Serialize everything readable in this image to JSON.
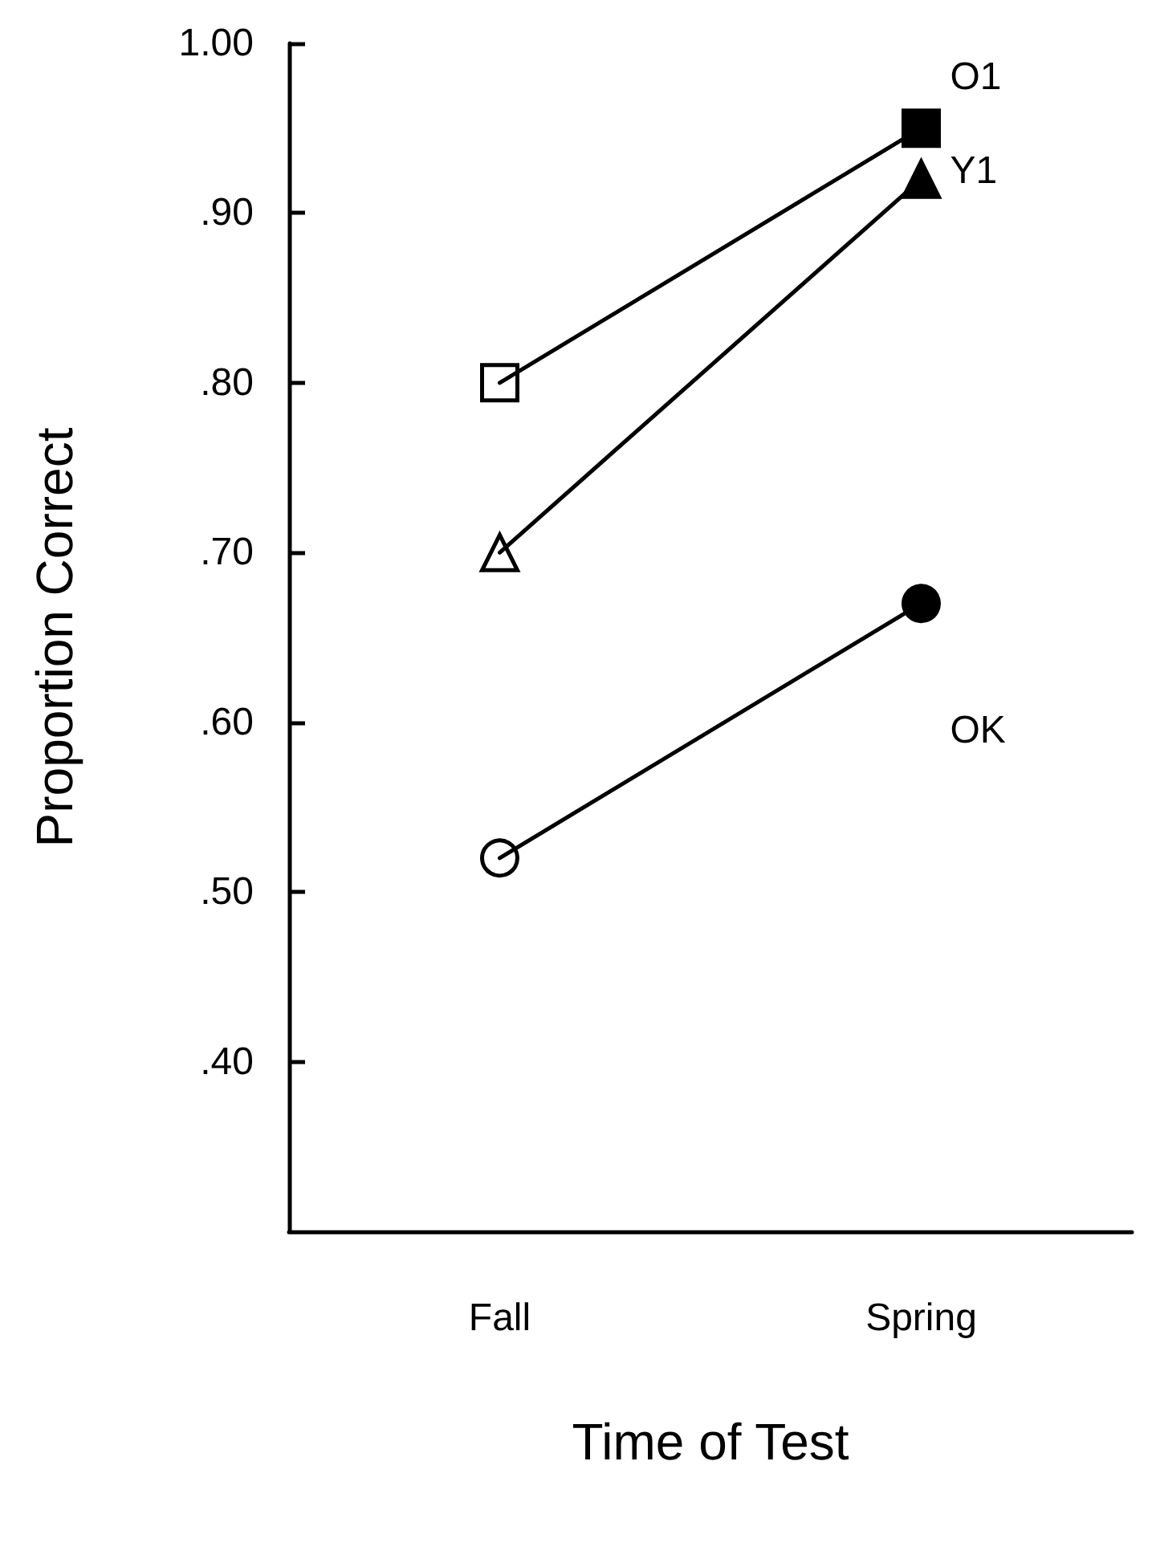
{
  "chart_data": {
    "type": "line",
    "xlabel": "Time of Test",
    "ylabel": "Proportion Correct",
    "categories": [
      "Fall",
      "Spring"
    ],
    "series": [
      {
        "name": "O1",
        "color": "#000000",
        "marker": "square",
        "colors": [
          null,
          "#000000"
        ],
        "values": [
          0.8,
          0.95
        ]
      },
      {
        "name": "Y1",
        "color": "#000000",
        "marker": "triangle",
        "colors": [
          null,
          "#000000"
        ],
        "values": [
          0.7,
          0.92
        ]
      },
      {
        "name": "OK",
        "color": "#000000",
        "marker": "circle",
        "colors": [
          null,
          "#000000"
        ],
        "values": [
          0.52,
          0.67
        ]
      }
    ],
    "ylim": [
      0.3,
      1.0
    ],
    "yticks": [
      {
        "value": 0.4,
        "label": ".40"
      },
      {
        "value": 0.5,
        "label": ".50"
      },
      {
        "value": 0.6,
        "label": ".60"
      },
      {
        "value": 0.7,
        "label": ".70"
      },
      {
        "value": 0.8,
        "label": ".80"
      },
      {
        "value": 0.9,
        "label": ".90"
      },
      {
        "value": 1.0,
        "label": "1.00"
      }
    ],
    "grid": false,
    "legend": false
  }
}
